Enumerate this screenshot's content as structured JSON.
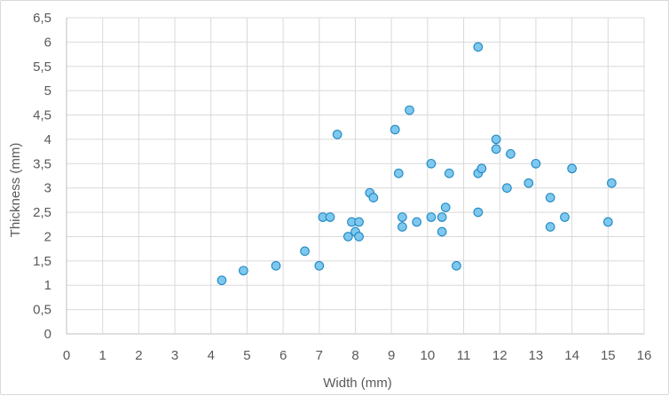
{
  "chart_data": {
    "type": "scatter",
    "title": "",
    "xlabel": "Width (mm)",
    "ylabel": "Thickness (mm)",
    "xlim": [
      0,
      16
    ],
    "ylim": [
      0,
      6.5
    ],
    "x_ticks": [
      "0",
      "1",
      "2",
      "3",
      "4",
      "5",
      "6",
      "7",
      "8",
      "9",
      "10",
      "11",
      "12",
      "13",
      "14",
      "15",
      "16"
    ],
    "y_ticks": [
      "0",
      "0,5",
      "1",
      "1,5",
      "2",
      "2,5",
      "3",
      "3,5",
      "4",
      "4,5",
      "5",
      "5,5",
      "6",
      "6,5"
    ],
    "grid": true,
    "legend": "none",
    "marker_fill": "#7ec8ee",
    "marker_stroke": "#1f88c4",
    "series": [
      {
        "points": [
          [
            4.3,
            1.1
          ],
          [
            4.9,
            1.3
          ],
          [
            5.8,
            1.4
          ],
          [
            6.6,
            1.7
          ],
          [
            7.0,
            1.4
          ],
          [
            7.1,
            2.4
          ],
          [
            7.3,
            2.4
          ],
          [
            7.5,
            4.1
          ],
          [
            7.8,
            2.0
          ],
          [
            7.9,
            2.3
          ],
          [
            8.0,
            2.1
          ],
          [
            8.1,
            2.0
          ],
          [
            8.1,
            2.3
          ],
          [
            8.4,
            2.9
          ],
          [
            8.5,
            2.8
          ],
          [
            9.1,
            4.2
          ],
          [
            9.2,
            3.3
          ],
          [
            9.3,
            2.4
          ],
          [
            9.3,
            2.2
          ],
          [
            9.5,
            4.6
          ],
          [
            9.7,
            2.3
          ],
          [
            10.1,
            3.5
          ],
          [
            10.1,
            2.4
          ],
          [
            10.4,
            2.4
          ],
          [
            10.4,
            2.1
          ],
          [
            10.5,
            2.6
          ],
          [
            10.6,
            3.3
          ],
          [
            10.8,
            1.4
          ],
          [
            11.4,
            5.9
          ],
          [
            11.4,
            3.3
          ],
          [
            11.4,
            2.5
          ],
          [
            11.5,
            3.4
          ],
          [
            11.9,
            4.0
          ],
          [
            11.9,
            3.8
          ],
          [
            12.2,
            3.0
          ],
          [
            12.3,
            3.7
          ],
          [
            12.8,
            3.1
          ],
          [
            13.0,
            3.5
          ],
          [
            13.4,
            2.8
          ],
          [
            13.4,
            2.2
          ],
          [
            13.8,
            2.4
          ],
          [
            14.0,
            3.4
          ],
          [
            15.0,
            2.3
          ],
          [
            15.1,
            3.1
          ]
        ]
      }
    ]
  }
}
